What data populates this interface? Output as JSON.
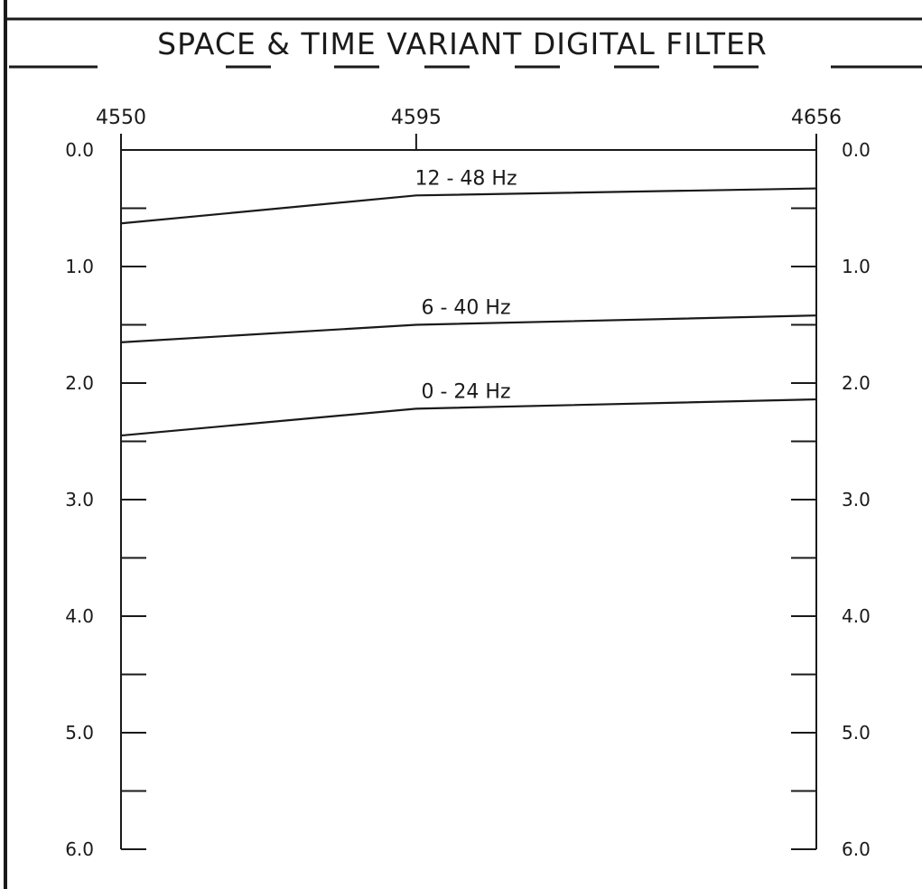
{
  "title": "SPACE & TIME VARIANT DIGITAL FILTER",
  "chart_data": {
    "type": "line",
    "title": "SPACE & TIME VARIANT DIGITAL FILTER",
    "xlabel": "",
    "ylabel": "",
    "x_tick_labels": [
      "4550",
      "4595",
      "4656"
    ],
    "x_ticks": [
      4550,
      4595,
      4656
    ],
    "xlim": [
      4550,
      4656
    ],
    "y_tick_labels": [
      "0.0",
      "1.0",
      "2.0",
      "3.0",
      "4.0",
      "5.0",
      "6.0"
    ],
    "y_ticks": [
      0,
      1,
      2,
      3,
      4,
      5,
      6
    ],
    "y_minor_ticks": [
      0.5,
      1.5,
      2.5,
      3.5,
      4.5,
      5.5
    ],
    "ylim": [
      0,
      6
    ],
    "y_inverted": true,
    "grid": false,
    "series": [
      {
        "name": "12 - 48 Hz",
        "x": [
          4550,
          4595,
          4656
        ],
        "y": [
          0.63,
          0.39,
          0.33
        ]
      },
      {
        "name": "6 - 40 Hz",
        "x": [
          4550,
          4595,
          4656
        ],
        "y": [
          1.65,
          1.5,
          1.42
        ]
      },
      {
        "name": "0 - 24 Hz",
        "x": [
          4550,
          4595,
          4656
        ],
        "y": [
          2.45,
          2.22,
          2.14
        ]
      }
    ]
  },
  "colors": {
    "ink": "#1a1a1a",
    "paper": "#ffffff"
  }
}
